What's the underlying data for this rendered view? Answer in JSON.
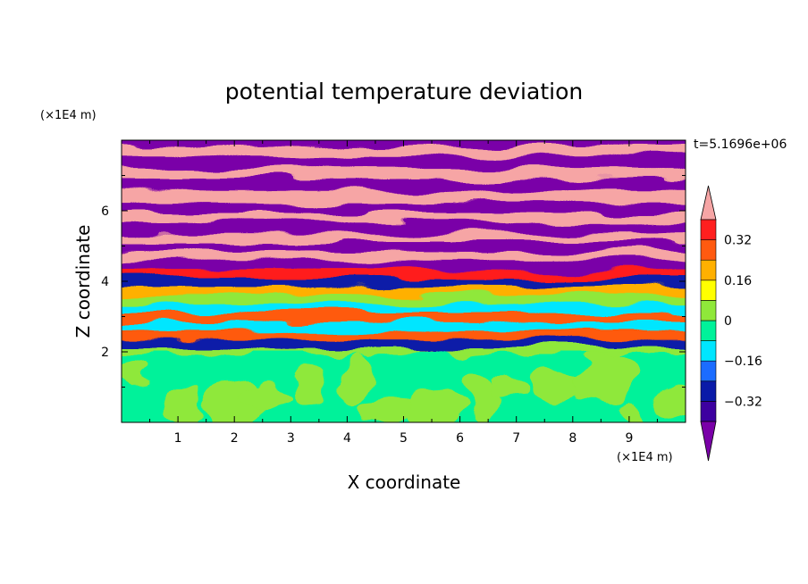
{
  "chart_data": {
    "type": "heatmap",
    "title": "potential temperature deviation",
    "xlabel": "X coordinate",
    "ylabel": "Z coordinate",
    "x_unit": "(×1E4 m)",
    "y_unit": "(×1E4 m)",
    "timestamp": "t=5.1696e+06",
    "xlim": [
      0,
      10
    ],
    "ylim": [
      0,
      8
    ],
    "x_ticks": [
      "1",
      "2",
      "3",
      "4",
      "5",
      "6",
      "7",
      "8",
      "9"
    ],
    "x_tick_values": [
      1,
      2,
      3,
      4,
      5,
      6,
      7,
      8,
      9
    ],
    "y_ticks": [
      "2",
      "4",
      "6"
    ],
    "y_tick_values": [
      2,
      4,
      6
    ],
    "colorbar": {
      "levels": [
        -0.4,
        -0.32,
        -0.24,
        -0.16,
        -0.08,
        0,
        0.08,
        0.16,
        0.24,
        0.32,
        0.4
      ],
      "tick_labels": [
        "0.32",
        "0.16",
        "0",
        "−0.16",
        "−0.32"
      ],
      "tick_values": [
        0.32,
        0.16,
        0,
        -0.16,
        -0.32
      ],
      "colors": [
        "#7a00a8",
        "#3d00a0",
        "#0a1aa8",
        "#1b6cff",
        "#00e6ff",
        "#00f29a",
        "#8fe83a",
        "#ffff00",
        "#ffb000",
        "#ff5a10",
        "#ff1f1f",
        "#f6a5a5"
      ],
      "extend": "both"
    },
    "bands": [
      {
        "z": 7.85,
        "value": -0.5
      },
      {
        "z": 7.55,
        "value": 0.5
      },
      {
        "z": 7.2,
        "value": -0.5
      },
      {
        "z": 6.9,
        "value": 0.5
      },
      {
        "z": 6.55,
        "value": -0.5
      },
      {
        "z": 6.25,
        "value": 0.5
      },
      {
        "z": 5.95,
        "value": -0.5
      },
      {
        "z": 5.65,
        "value": 0.5
      },
      {
        "z": 5.35,
        "value": -0.5
      },
      {
        "z": 5.1,
        "value": 0.5
      },
      {
        "z": 4.85,
        "value": -0.5
      },
      {
        "z": 4.6,
        "value": 0.5
      },
      {
        "z": 4.35,
        "value": -0.5
      },
      {
        "z": 4.1,
        "value": 0.36
      },
      {
        "z": 3.85,
        "value": -0.3
      },
      {
        "z": 3.6,
        "value": 0.2
      },
      {
        "z": 3.35,
        "value": 0.05
      },
      {
        "z": 3.1,
        "value": -0.15
      },
      {
        "z": 2.85,
        "value": 0.25
      },
      {
        "z": 2.6,
        "value": -0.1
      },
      {
        "z": 2.35,
        "value": 0.3
      },
      {
        "z": 2.1,
        "value": -0.25
      },
      {
        "z": 1.95,
        "value": 0.02
      },
      {
        "z": 1.0,
        "value": 0.03
      },
      {
        "z": 0.0,
        "value": 0.05
      }
    ]
  }
}
